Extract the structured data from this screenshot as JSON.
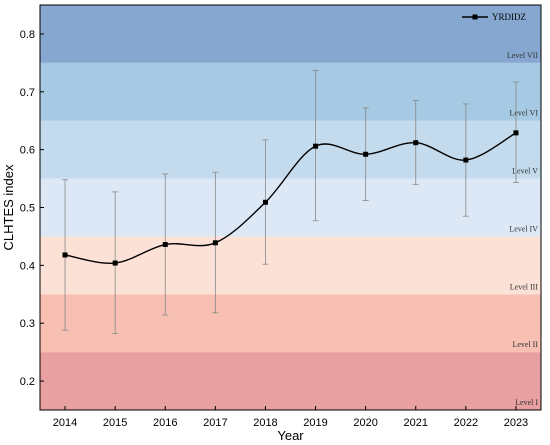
{
  "chart_data": {
    "type": "line",
    "title": "",
    "xlabel": "Year",
    "ylabel": "CLHTES index",
    "ylim": [
      0.15,
      0.85
    ],
    "xlim": [
      2013.5,
      2023.5
    ],
    "x": [
      2014,
      2015,
      2016,
      2017,
      2018,
      2019,
      2020,
      2021,
      2022,
      2023
    ],
    "y_ticks": [
      "0.2",
      "0.3",
      "0.4",
      "0.5",
      "0.6",
      "0.7",
      "0.8"
    ],
    "x_ticks": [
      "2014",
      "2015",
      "2016",
      "2017",
      "2018",
      "2019",
      "2020",
      "2021",
      "2022",
      "2023"
    ],
    "series": [
      {
        "name": "YRDIDZ",
        "color": "#000000",
        "marker": "square",
        "smooth": true,
        "values": [
          0.418,
          0.404,
          0.436,
          0.439,
          0.509,
          0.606,
          0.592,
          0.612,
          0.582,
          0.629
        ],
        "error_upper": [
          0.548,
          0.527,
          0.558,
          0.561,
          0.617,
          0.737,
          0.672,
          0.685,
          0.679,
          0.717
        ],
        "error_lower": [
          0.288,
          0.282,
          0.314,
          0.318,
          0.402,
          0.477,
          0.512,
          0.54,
          0.485,
          0.543
        ]
      }
    ],
    "legend": {
      "position": "top-right",
      "entries": [
        "YRDIDZ"
      ]
    },
    "bands": [
      {
        "label": "Level I",
        "from": 0.15,
        "to": 0.25,
        "color": "#e8a0a0"
      },
      {
        "label": "Level II",
        "from": 0.25,
        "to": 0.35,
        "color": "#f7c0b2"
      },
      {
        "label": "Level III",
        "from": 0.35,
        "to": 0.45,
        "color": "#fce1d6"
      },
      {
        "label": "Level IV",
        "from": 0.45,
        "to": 0.55,
        "color": "#dde8f6"
      },
      {
        "label": "Level V",
        "from": 0.55,
        "to": 0.65,
        "color": "#c3dbec"
      },
      {
        "label": "Level VI",
        "from": 0.65,
        "to": 0.75,
        "color": "#a6cae3"
      },
      {
        "label": "Level VII",
        "from": 0.75,
        "to": 0.85,
        "color": "#86a8d0"
      }
    ],
    "grid": false
  }
}
